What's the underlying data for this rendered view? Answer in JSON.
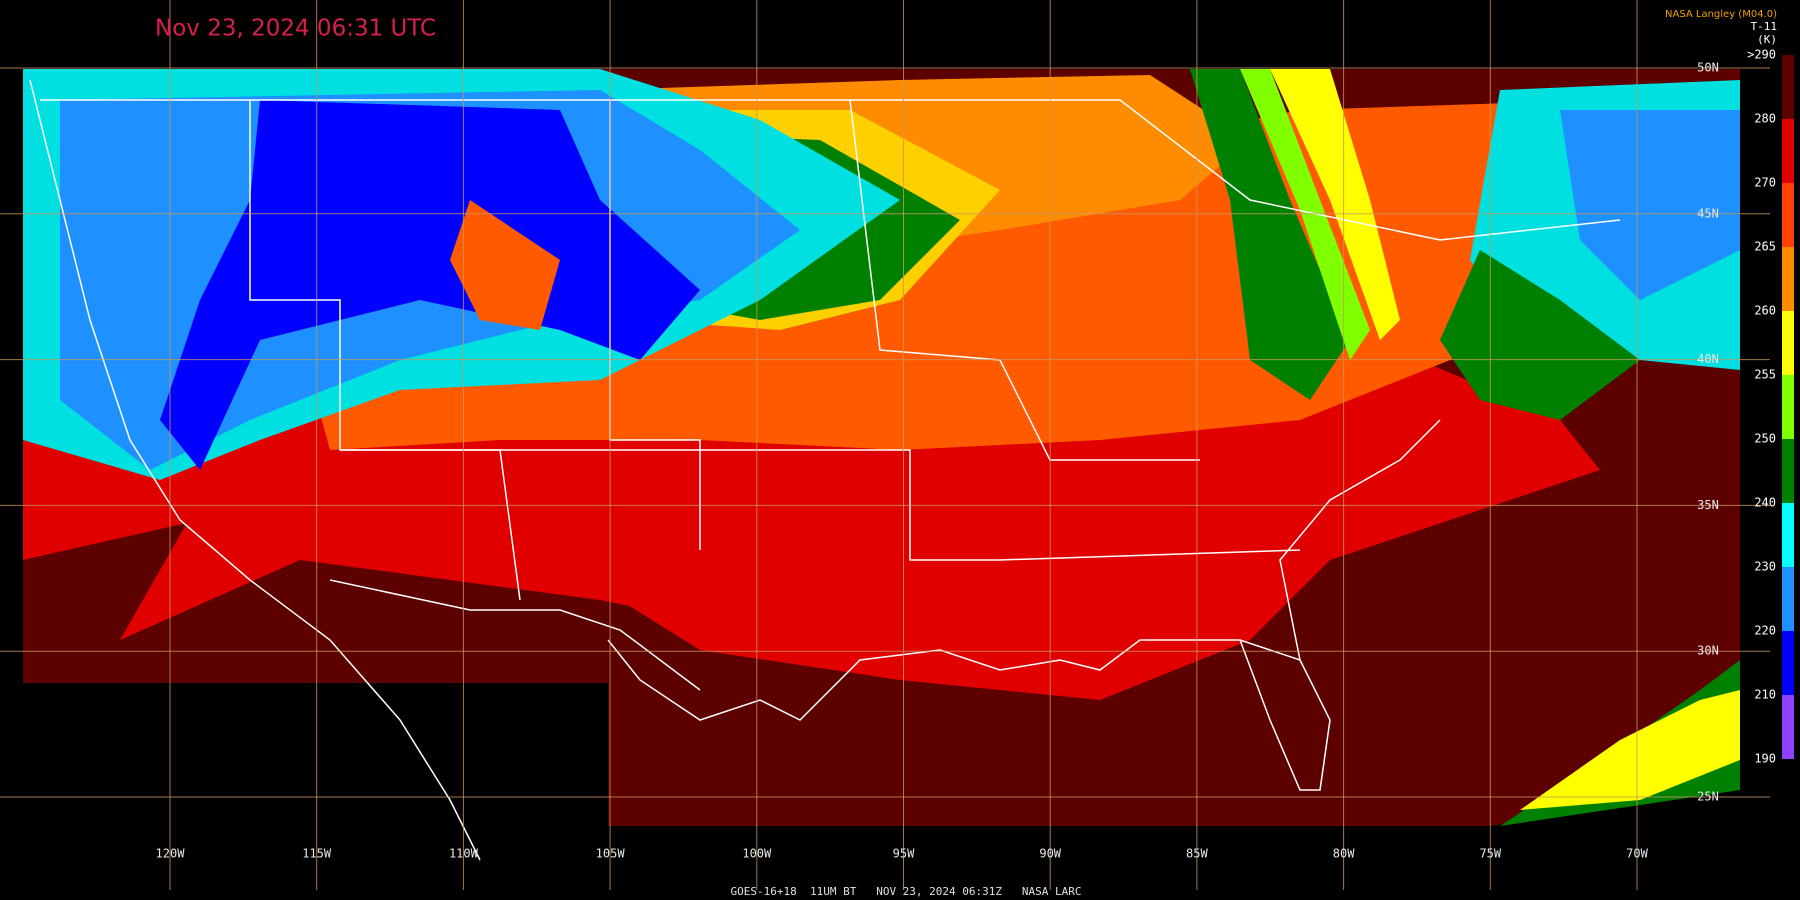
{
  "header": {
    "title": "Nov 23, 2024 06:31 UTC",
    "source": "NASA Langley (M04.0)"
  },
  "colorbar": {
    "channel": "T-11",
    "unit": "(K)",
    "labels": [
      ">290",
      "280",
      "270",
      "265",
      "260",
      "255",
      "250",
      "240",
      "230",
      "220",
      "210",
      "190"
    ],
    "colors": [
      "#5c0000",
      "#e00000",
      "#ff4000",
      "#ff8c00",
      "#ffff00",
      "#80ff00",
      "#008000",
      "#00ffff",
      "#1e90ff",
      "#0000ff",
      "#9040ff"
    ]
  },
  "map": {
    "latitude_labels": [
      "50N",
      "45N",
      "40N",
      "35N",
      "30N",
      "25N"
    ],
    "longitude_labels": [
      "120W",
      "115W",
      "110W",
      "105W",
      "100W",
      "95W",
      "90W",
      "85W",
      "80W",
      "75W",
      "70W"
    ]
  },
  "footer": "GOES-16+18  11UM BT   NOV 23, 2024 06:31Z   NASA LARC"
}
